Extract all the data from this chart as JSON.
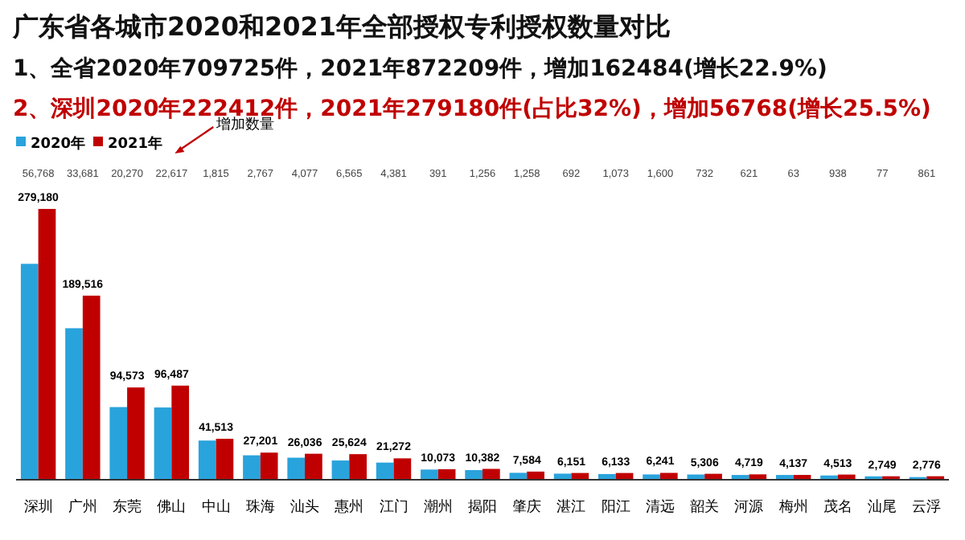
{
  "chart_data": {
    "type": "bar",
    "title": "广东省各城市2020和2021年全部授权专利授权数量对比",
    "subtitle": "1、全省2020年709725件，2021年872209件，增加162484(增长22.9%)",
    "categories": [
      "深圳",
      "广州",
      "东莞",
      "佛山",
      "中山",
      "珠海",
      "汕头",
      "惠州",
      "江门",
      "潮州",
      "揭阳",
      "肇庆",
      "湛江",
      "阳江",
      "清远",
      "韶关",
      "河源",
      "梅州",
      "茂名",
      "汕尾",
      "云浮"
    ],
    "legend": "top left",
    "series": [
      {
        "name": "2020年",
        "color": "#29a3dc",
        "values": [
          222412,
          155835,
          74303,
          73870,
          39698,
          24434,
          21959,
          19059,
          16891,
          9682,
          9126,
          6326,
          5459,
          5060,
          4641,
          4574,
          4098,
          4074,
          3575,
          2672,
          1915
        ]
      },
      {
        "name": "2021年",
        "color": "#c00000",
        "values": [
          279180,
          189516,
          94573,
          96487,
          41513,
          27201,
          26036,
          25624,
          21272,
          10073,
          10382,
          7584,
          6151,
          6133,
          6241,
          5306,
          4719,
          4137,
          4513,
          2749,
          2776
        ],
        "value_labels": [
          "279,180",
          "189,516",
          "94,573",
          "96,487",
          "41,513",
          "27,201",
          "26,036",
          "25,624",
          "21,272",
          "10,073",
          "10,382",
          "7,584",
          "6,151",
          "6,133",
          "6,241",
          "5,306",
          "4,719",
          "4,137",
          "4,513",
          "2,749",
          "2,776"
        ]
      }
    ],
    "annotations": [
      "2、深圳2020年222412件，2021年279180件(占比32%)，增加56768(增长25.5%)",
      "增加数量",
      "56,768",
      "33,681",
      "20,270",
      "22,617",
      "1,815",
      "2,767",
      "4,077",
      "6,565",
      "4,381",
      "391",
      "1,256",
      "1,258",
      "692",
      "1,073",
      "1,600",
      "732",
      "621",
      "63",
      "938",
      "77",
      "861"
    ]
  }
}
